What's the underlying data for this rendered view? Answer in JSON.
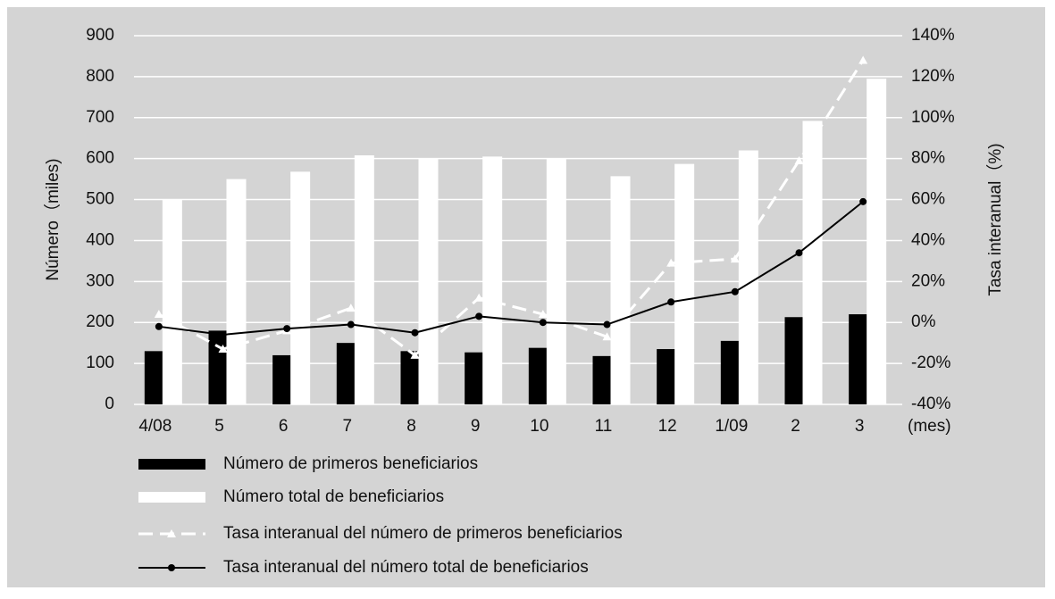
{
  "chart_data": {
    "type": "bar-line",
    "categories": [
      "4/08",
      "5",
      "6",
      "7",
      "8",
      "9",
      "10",
      "11",
      "12",
      "1/09",
      "2",
      "3"
    ],
    "xlabel": "(mes)",
    "ylabel": "Número（miles)",
    "y2label": "Tasa interanual（%)",
    "ylim": [
      0,
      900
    ],
    "yticks": [
      0,
      100,
      200,
      300,
      400,
      500,
      600,
      700,
      800,
      900
    ],
    "y2lim": [
      -40,
      140
    ],
    "y2ticks": [
      {
        "value": -40,
        "label": "-40%"
      },
      {
        "value": -20,
        "label": "-20%"
      },
      {
        "value": 0,
        "label": "0%"
      },
      {
        "value": 20,
        "label": "20%"
      },
      {
        "value": 40,
        "label": "40%"
      },
      {
        "value": 60,
        "label": "60%"
      },
      {
        "value": 80,
        "label": "80%"
      },
      {
        "value": 100,
        "label": "100%"
      },
      {
        "value": 120,
        "label": "120%"
      },
      {
        "value": 140,
        "label": "140%"
      }
    ],
    "grid": true,
    "series": [
      {
        "name": "Número de primeros beneficiarios",
        "type": "bar",
        "color": "#000000",
        "values": [
          130,
          180,
          120,
          150,
          130,
          127,
          138,
          118,
          135,
          155,
          213,
          220
        ]
      },
      {
        "name": "Número total de  beneficiarios",
        "type": "bar",
        "color": "#ffffff",
        "values": [
          500,
          550,
          568,
          608,
          600,
          605,
          600,
          557,
          587,
          620,
          692,
          795
        ]
      },
      {
        "name": "Tasa interanual del número de primeros beneficiarios",
        "type": "line",
        "axis": "y2",
        "color": "#ffffff",
        "dashed": true,
        "marker": "triangle",
        "values": [
          4,
          -13,
          -4,
          7,
          -16,
          12,
          4,
          -7,
          29,
          31,
          79,
          128
        ]
      },
      {
        "name": "Tasa interanual del número total de beneficiarios",
        "type": "line",
        "axis": "y2",
        "color": "#000000",
        "marker": "circle",
        "values": [
          -2,
          -6,
          -3,
          -1,
          -5,
          3,
          0,
          -1,
          10,
          15,
          34,
          59
        ]
      }
    ]
  }
}
